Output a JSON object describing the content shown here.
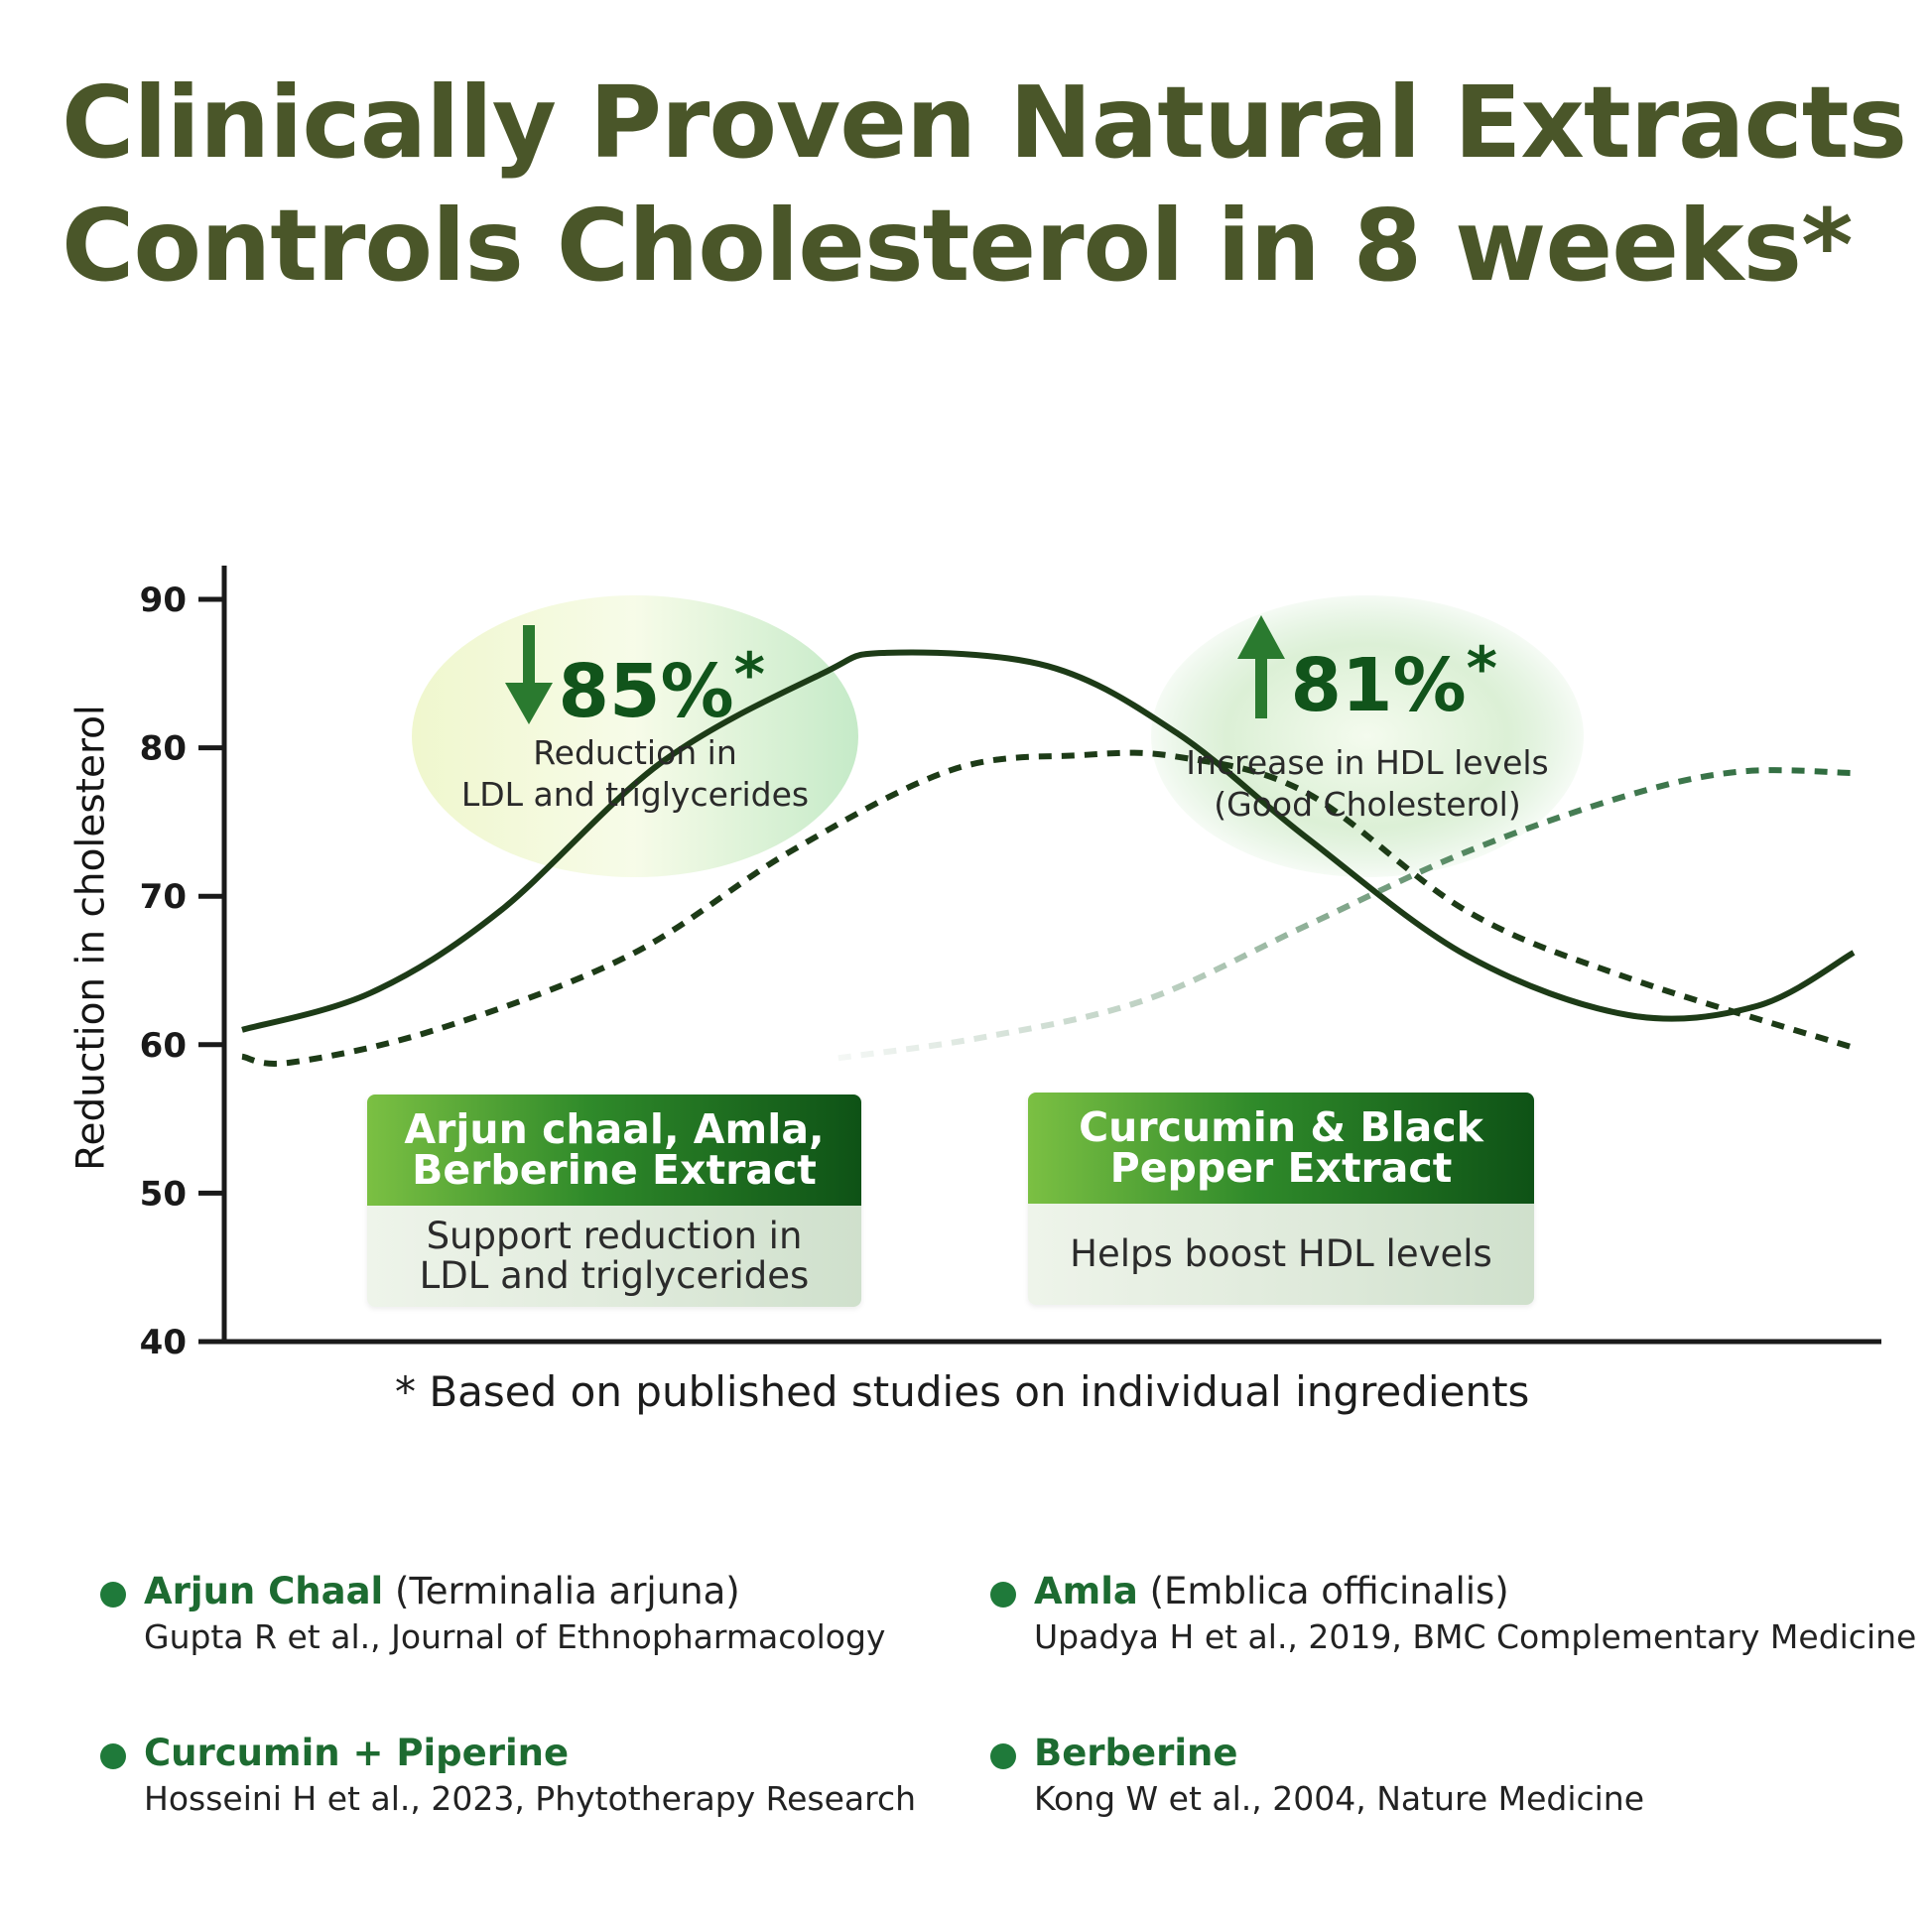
{
  "headline": {
    "line1": "Clinically Proven Natural Extracts",
    "line2": "Controls Cholesterol in 8 weeks*"
  },
  "chart_data": {
    "type": "line",
    "ylabel": "Reduction in cholesterol",
    "xlabel": "",
    "ylim": [
      40,
      90
    ],
    "yticks": [
      "90",
      "80",
      "70",
      "60",
      "50",
      "40"
    ],
    "grid": false,
    "series": [
      {
        "style": "solid",
        "color": "#1d3b17",
        "points": [
          [
            0,
            61
          ],
          [
            0.08,
            63.5
          ],
          [
            0.16,
            69
          ],
          [
            0.26,
            79
          ],
          [
            0.36,
            85
          ],
          [
            0.4,
            86.4
          ],
          [
            0.5,
            85.5
          ],
          [
            0.58,
            81
          ],
          [
            0.66,
            74
          ],
          [
            0.76,
            66
          ],
          [
            0.86,
            62
          ],
          [
            0.94,
            62.6
          ],
          [
            1,
            66.2
          ]
        ]
      },
      {
        "style": "dotted",
        "color": "#1d3b17",
        "points": [
          [
            0,
            59.2
          ],
          [
            0.03,
            58.8
          ],
          [
            0.12,
            61
          ],
          [
            0.24,
            66
          ],
          [
            0.34,
            73
          ],
          [
            0.44,
            78.5
          ],
          [
            0.52,
            79.5
          ],
          [
            0.58,
            79.4
          ],
          [
            0.66,
            77
          ],
          [
            0.76,
            69
          ],
          [
            0.86,
            64.5
          ],
          [
            1,
            59.8
          ]
        ]
      },
      {
        "style": "dotted-fading",
        "color": "#2d6b3d",
        "points": [
          [
            0.37,
            59.1
          ],
          [
            0.46,
            60.5
          ],
          [
            0.56,
            63
          ],
          [
            0.66,
            68
          ],
          [
            0.76,
            73
          ],
          [
            0.86,
            76.8
          ],
          [
            0.93,
            78.4
          ],
          [
            1,
            78.3
          ]
        ]
      }
    ]
  },
  "callouts": [
    {
      "value": "85%",
      "asterisk": "*",
      "direction": "down",
      "line1": "Reduction in",
      "line2": "LDL  and  triglycerides"
    },
    {
      "value": "81%",
      "asterisk": "*",
      "direction": "up",
      "line1": "Increase in HDL levels",
      "line2": "(Good Cholesterol)"
    }
  ],
  "cards": [
    {
      "title1": "Arjun chaal, Amla,",
      "title2": "Berberine Extract",
      "body1": "Support reduction in",
      "body2": "LDL  and  triglycerides"
    },
    {
      "title1": "Curcumin & Black",
      "title2": "Pepper Extract",
      "body1": "Helps boost HDL levels",
      "body2": ""
    }
  ],
  "footnote": "* Based on published studies on individual ingredients",
  "references": [
    {
      "name": "Arjun Chaal",
      "scientific": " (Terminalia arjuna)",
      "citation": "Gupta R et al., Journal of Ethnopharmacology"
    },
    {
      "name": "Amla",
      "scientific": " (Emblica officinalis)",
      "citation": "Upadya H et al., 2019, BMC Complementary Medicine"
    },
    {
      "name": "Curcumin + Piperine",
      "scientific": "",
      "citation": "Hosseini H et al., 2023, Phytotherapy Research"
    },
    {
      "name": "Berberine",
      "scientific": "",
      "citation": "Kong W et al., 2004, Nature Medicine"
    }
  ],
  "colors": {
    "headline": "#4a5629",
    "accent_dark_green": "#11541b",
    "bullet_green": "#1f7a3a",
    "axis": "#1a1a1a"
  }
}
